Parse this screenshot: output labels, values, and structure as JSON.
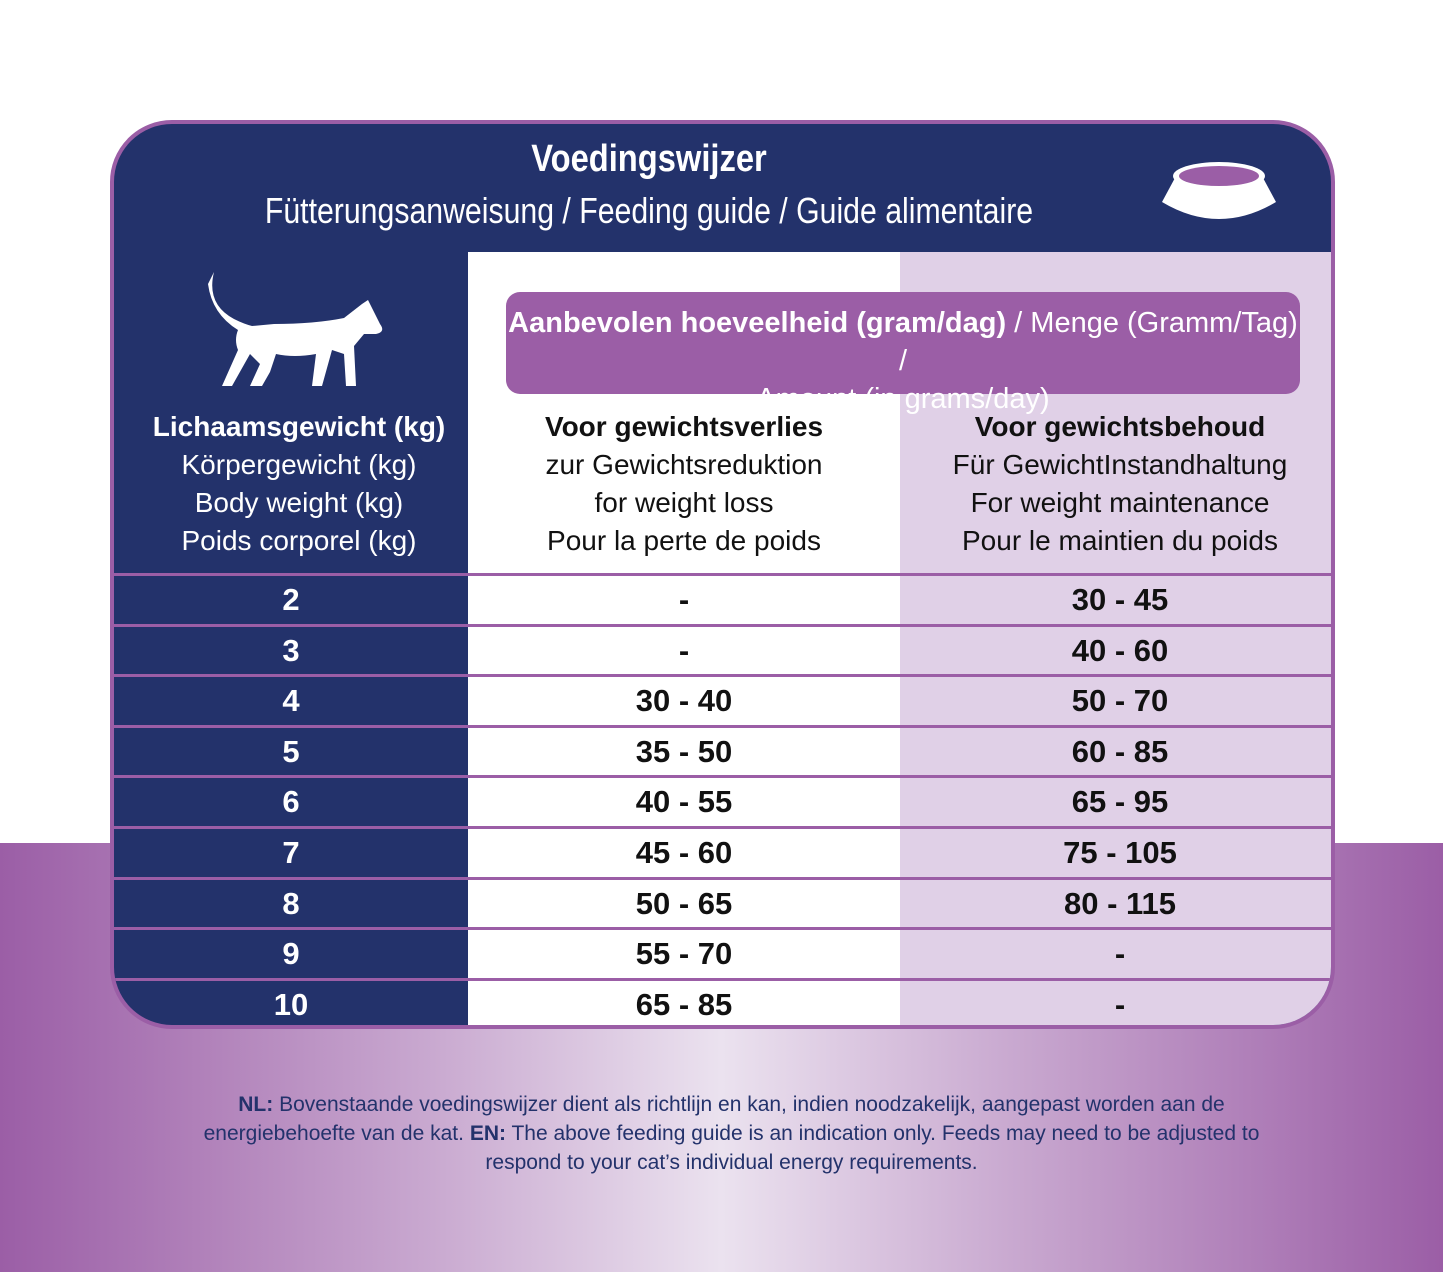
{
  "header": {
    "title": "Voedingswijzer",
    "subtitle": "Fütterungsanweisung / Feeding guide / Guide alimentaire"
  },
  "amount_header": {
    "bold": "Aanbevolen hoeveelheid (gram/dag)",
    "rest": " / Menge (Gramm/Tag) /",
    "line2": "Amount (in grams/day)"
  },
  "columns": [
    {
      "title": "Lichaamsgewicht (kg)",
      "lines": [
        "Körpergewicht (kg)",
        "Body weight (kg)",
        "Poids corporel (kg)"
      ]
    },
    {
      "title": "Voor gewichtsverlies",
      "lines": [
        "zur Gewichtsreduktion",
        "for weight loss",
        "Pour la perte de poids"
      ]
    },
    {
      "title": "Voor gewichtsbehoud",
      "lines": [
        "Für GewichtInstandhaltung",
        "For weight maintenance",
        "Pour le maintien du poids"
      ]
    }
  ],
  "table": {
    "rows": [
      [
        "2",
        "-",
        "30 - 45"
      ],
      [
        "3",
        "-",
        "40 - 60"
      ],
      [
        "4",
        "30 - 40",
        "50 - 70"
      ],
      [
        "5",
        "35 - 50",
        "60 - 85"
      ],
      [
        "6",
        "40 - 55",
        "65 - 95"
      ],
      [
        "7",
        "45 - 60",
        "75 - 105"
      ],
      [
        "8",
        "50 - 65",
        "80 - 115"
      ],
      [
        "9",
        "55 - 70",
        "-"
      ],
      [
        "10",
        "65 - 85",
        "-"
      ]
    ]
  },
  "footnote": {
    "nl_label": "NL:",
    "nl_text": " Bovenstaande voedingswijzer dient als richtlijn en kan, indien noodzakelijk, aangepast worden aan de energiebehoefte van de kat. ",
    "en_label": "EN:",
    "en_text": " The above feeding guide is an indication only. Feeds may need to be adjusted to respond to your cat’s individual energy requirements."
  }
}
